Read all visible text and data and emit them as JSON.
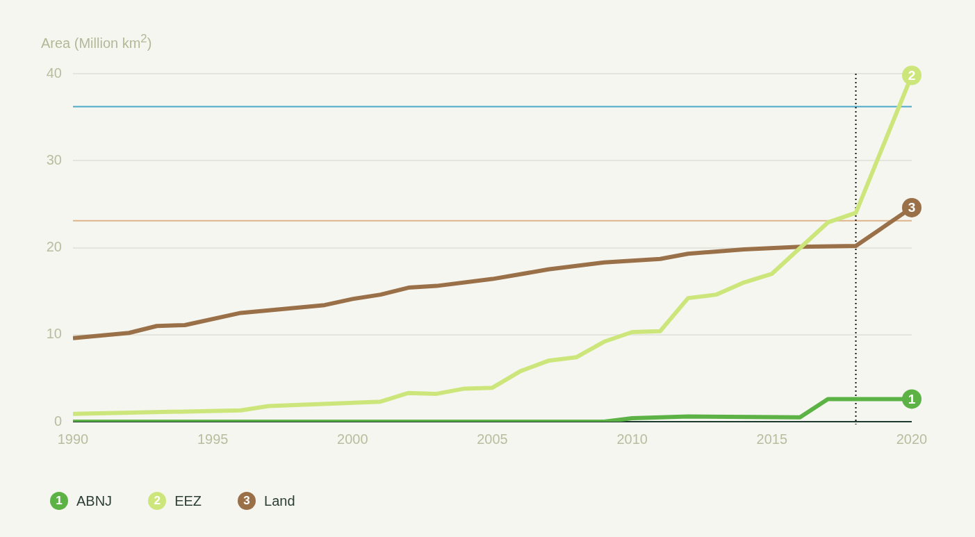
{
  "chart_data": {
    "type": "line",
    "ylabel": "Area (Million km$^{2}$)",
    "xlim": [
      1990,
      2020
    ],
    "xticks": [
      1990,
      1995,
      2000,
      2005,
      2010,
      2015,
      2020
    ],
    "ylim": [
      0,
      40
    ],
    "yticks": [
      0,
      10,
      20,
      30,
      40
    ],
    "annotations": [
      "1",
      "2",
      "3"
    ],
    "grid": "y",
    "legend": "bottom left",
    "marker": "none",
    "line_style": "solid",
    "ref_lines": [
      {
        "axis": "y",
        "value": 36.2,
        "color": "#4aa8c8"
      },
      {
        "axis": "y",
        "value": 23.1,
        "color": "#ddb48a"
      },
      {
        "axis": "x",
        "value": 2018,
        "color": "#111111",
        "line_style": "dotted"
      }
    ],
    "series": [
      {
        "name": "ABNJ",
        "color": "#5cb245",
        "x": [
          1990,
          2009,
          2010,
          2011,
          2012,
          2016,
          2017,
          2018,
          2020
        ],
        "values": [
          0,
          0,
          0.4,
          0.5,
          0.6,
          0.5,
          2.6,
          2.6,
          2.6
        ]
      },
      {
        "name": "EEZ",
        "color": "#cde67c",
        "x": [
          1990,
          1996,
          1997,
          2001,
          2002,
          2003,
          2004,
          2005,
          2006,
          2007,
          2008,
          2009,
          2010,
          2011,
          2012,
          2013,
          2014,
          2015,
          2017,
          2018,
          2020
        ],
        "values": [
          0.9,
          1.3,
          1.8,
          2.3,
          3.3,
          3.2,
          3.8,
          3.9,
          5.8,
          7.0,
          7.4,
          9.2,
          10.3,
          10.4,
          14.2,
          14.6,
          16.0,
          17.0,
          22.9,
          24.0,
          39.8
        ]
      },
      {
        "name": "Land",
        "color": "#9a7049",
        "x": [
          1990,
          1992,
          1993,
          1994,
          1996,
          1999,
          2000,
          2001,
          2002,
          2003,
          2005,
          2007,
          2009,
          2011,
          2012,
          2014,
          2016,
          2018,
          2020
        ],
        "values": [
          9.6,
          10.2,
          11.0,
          11.1,
          12.5,
          13.4,
          14.1,
          14.6,
          15.4,
          15.6,
          16.4,
          17.5,
          18.3,
          18.7,
          19.3,
          19.8,
          20.1,
          20.2,
          24.6
        ]
      }
    ]
  }
}
